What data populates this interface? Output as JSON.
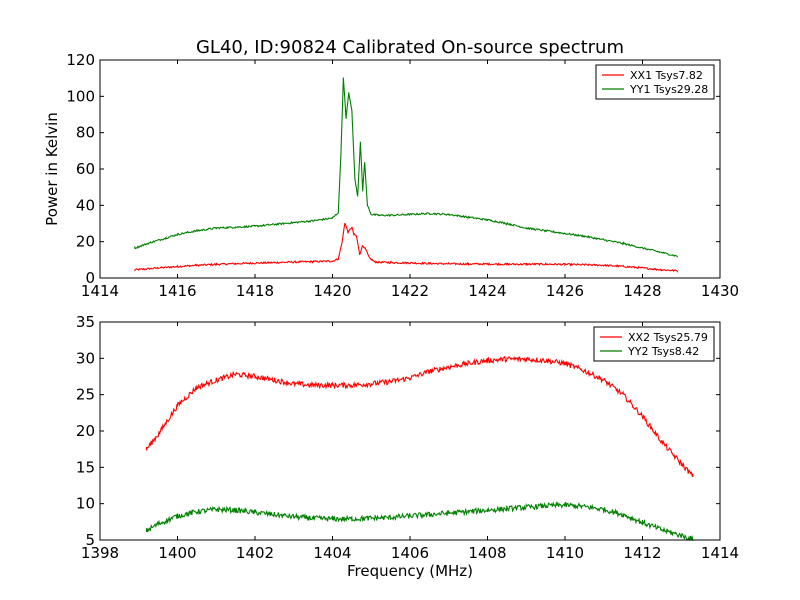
{
  "title": "GL40, ID:90824 Calibrated On-source spectrum",
  "colors": {
    "red": "#ff0000",
    "green": "#008000"
  },
  "chart_data": [
    {
      "type": "line",
      "ylabel": "Power in Kelvin",
      "xlabel": "",
      "xlim": [
        1414,
        1430
      ],
      "ylim": [
        0,
        120
      ],
      "xticks": [
        1414,
        1416,
        1418,
        1420,
        1422,
        1424,
        1426,
        1428,
        1430
      ],
      "yticks": [
        0,
        20,
        40,
        60,
        80,
        100,
        120
      ],
      "legend_position": "top-right",
      "series": [
        {
          "name": "XX1 Tsys7.82",
          "color": "#ff0000",
          "x": [
            1414.9,
            1415.5,
            1416.0,
            1416.5,
            1417.0,
            1417.5,
            1418.0,
            1418.5,
            1419.0,
            1419.5,
            1420.0,
            1420.15,
            1420.25,
            1420.32,
            1420.4,
            1420.5,
            1420.55,
            1420.62,
            1420.7,
            1420.78,
            1420.85,
            1420.95,
            1421.1,
            1421.5,
            1422.0,
            1422.5,
            1423.0,
            1423.5,
            1424.0,
            1424.5,
            1425.0,
            1425.5,
            1426.0,
            1426.5,
            1427.0,
            1427.5,
            1428.0,
            1428.5,
            1428.9
          ],
          "y": [
            4.5,
            5.5,
            6.3,
            7.0,
            7.5,
            7.9,
            8.2,
            8.5,
            8.8,
            9.0,
            9.3,
            10.5,
            20,
            30.5,
            25,
            28,
            24,
            23,
            13,
            18,
            16,
            11,
            8.8,
            8.5,
            8.3,
            8.0,
            7.8,
            7.7,
            7.7,
            7.6,
            7.6,
            7.6,
            7.5,
            7.3,
            7.0,
            6.4,
            5.5,
            4.5,
            4.0
          ]
        },
        {
          "name": "YY1 Tsys29.28",
          "color": "#008000",
          "x": [
            1414.9,
            1415.3,
            1415.7,
            1416.0,
            1416.5,
            1417.0,
            1417.5,
            1418.0,
            1418.5,
            1419.0,
            1419.5,
            1420.0,
            1420.15,
            1420.22,
            1420.28,
            1420.35,
            1420.42,
            1420.5,
            1420.58,
            1420.65,
            1420.72,
            1420.78,
            1420.83,
            1420.9,
            1421.0,
            1421.2,
            1421.5,
            1422.0,
            1422.5,
            1423.0,
            1423.5,
            1424.0,
            1424.5,
            1425.0,
            1425.5,
            1426.0,
            1426.5,
            1427.0,
            1427.5,
            1428.0,
            1428.5,
            1428.9
          ],
          "y": [
            16.5,
            19.5,
            22.0,
            24.0,
            26.0,
            27.5,
            28.0,
            28.5,
            29.5,
            30.5,
            31.5,
            33.0,
            36.0,
            70.0,
            110.0,
            88.0,
            102.0,
            92.0,
            54.0,
            45.0,
            75.0,
            48.0,
            64.0,
            40.0,
            35.0,
            34.5,
            34.5,
            35.0,
            35.5,
            35.0,
            33.5,
            32.0,
            30.0,
            27.5,
            26.0,
            24.5,
            23.0,
            21.0,
            19.0,
            16.5,
            14.0,
            12.0
          ]
        }
      ]
    },
    {
      "type": "line",
      "ylabel": "",
      "xlabel": "Frequency (MHz)",
      "xlim": [
        1398,
        1414
      ],
      "ylim": [
        5,
        35
      ],
      "xticks": [
        1398,
        1400,
        1402,
        1404,
        1406,
        1408,
        1410,
        1412,
        1414
      ],
      "yticks": [
        5,
        10,
        15,
        20,
        25,
        30,
        35
      ],
      "legend_position": "top-right",
      "series": [
        {
          "name": "XX2 Tsys25.79",
          "color": "#ff0000",
          "x": [
            1399.2,
            1399.5,
            1400.0,
            1400.5,
            1401.0,
            1401.5,
            1402.0,
            1402.5,
            1403.0,
            1403.5,
            1404.0,
            1404.5,
            1405.0,
            1405.5,
            1406.0,
            1406.5,
            1407.0,
            1407.5,
            1408.0,
            1408.5,
            1409.0,
            1409.5,
            1410.0,
            1410.5,
            1411.0,
            1411.5,
            1412.0,
            1412.5,
            1413.0,
            1413.3
          ],
          "y": [
            17.5,
            19.5,
            23.5,
            26.0,
            27.0,
            27.8,
            27.5,
            27.0,
            26.5,
            26.3,
            26.3,
            26.3,
            26.5,
            26.8,
            27.3,
            28.2,
            28.8,
            29.3,
            29.7,
            29.9,
            29.9,
            29.7,
            29.3,
            28.3,
            27.0,
            25.0,
            22.0,
            18.5,
            15.5,
            13.8
          ]
        },
        {
          "name": "YY2 Tsys8.42",
          "color": "#008000",
          "x": [
            1399.2,
            1399.5,
            1400.0,
            1400.5,
            1401.0,
            1401.5,
            1402.0,
            1402.5,
            1403.0,
            1403.5,
            1404.0,
            1404.5,
            1405.0,
            1405.5,
            1406.0,
            1406.5,
            1407.0,
            1407.5,
            1408.0,
            1408.5,
            1409.0,
            1409.5,
            1410.0,
            1410.5,
            1411.0,
            1411.5,
            1412.0,
            1412.5,
            1413.0,
            1413.3
          ],
          "y": [
            6.3,
            7.2,
            8.3,
            8.9,
            9.2,
            9.1,
            8.8,
            8.5,
            8.2,
            8.0,
            7.9,
            7.9,
            8.0,
            8.1,
            8.3,
            8.5,
            8.7,
            8.9,
            9.1,
            9.3,
            9.5,
            9.7,
            9.8,
            9.6,
            9.2,
            8.5,
            7.4,
            6.4,
            5.6,
            5.1
          ]
        }
      ]
    }
  ]
}
